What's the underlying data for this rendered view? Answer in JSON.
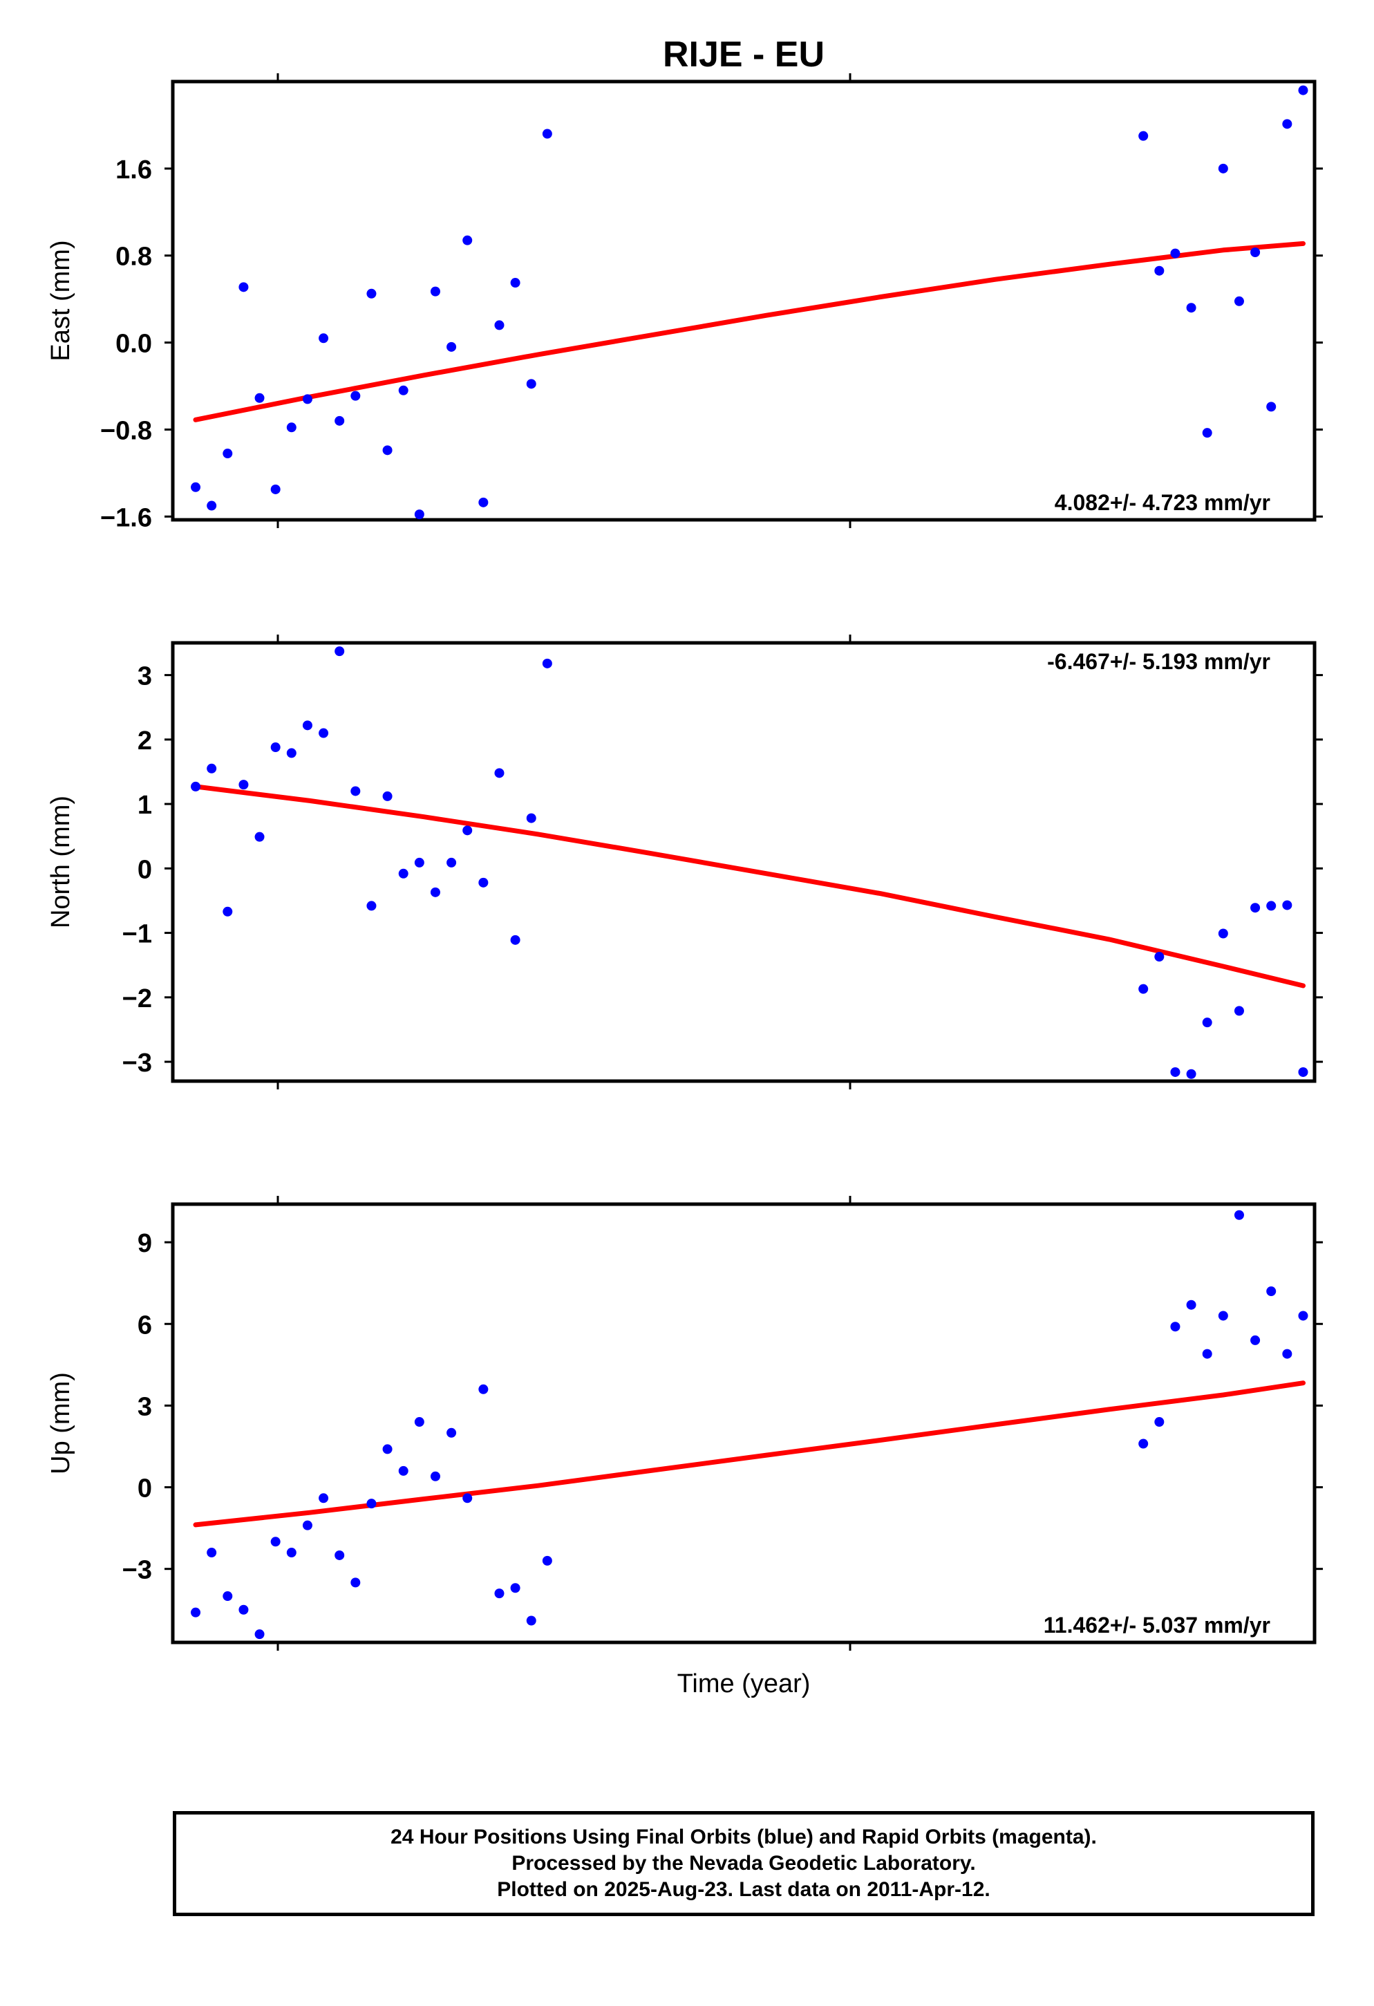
{
  "title": "RIJE - EU",
  "xlabel": "Time (year)",
  "colors": {
    "points": "#0000ff",
    "fit": "#ff0000",
    "axes": "#000000"
  },
  "footer": {
    "line1": "24 Hour Positions Using Final Orbits (blue) and Rapid Orbits (magenta).",
    "line2": "Processed by the Nevada Geodetic Laboratory.",
    "line3": "Plotted on 2025-Aug-23. Last data on 2011-Apr-12."
  },
  "chart_data": [
    {
      "type": "scatter",
      "ylabel": "East (mm)",
      "rate": "4.082+/- 4.723 mm/yr",
      "rate_position": "bottom-right",
      "ylim": [
        -1.63,
        2.4
      ],
      "xlim": [
        0,
        100
      ],
      "yticks": [
        -1.6,
        -0.8,
        0.0,
        0.8,
        1.6
      ],
      "ytick_labels": [
        "−1.6",
        "−0.8",
        "0.0",
        "0.8",
        "1.6"
      ],
      "x": [
        2.0,
        3.4,
        4.8,
        6.2,
        7.6,
        9.0,
        10.4,
        11.8,
        13.2,
        14.6,
        16.0,
        17.4,
        18.8,
        20.2,
        21.6,
        23.0,
        24.4,
        25.8,
        27.2,
        28.6,
        30.0,
        31.4,
        32.8,
        85.0,
        86.4,
        87.8,
        89.2,
        90.6,
        92.0,
        93.4,
        94.8,
        96.2,
        97.6,
        99.0
      ],
      "y": [
        -1.33,
        -1.5,
        -1.02,
        0.51,
        -0.51,
        -1.35,
        -0.78,
        -0.52,
        0.04,
        -0.72,
        -0.49,
        0.45,
        -0.99,
        -0.44,
        -1.58,
        0.47,
        -0.04,
        0.94,
        -1.47,
        0.16,
        0.55,
        -0.38,
        1.92,
        1.9,
        0.66,
        0.82,
        0.32,
        -0.83,
        1.6,
        0.38,
        0.83,
        -0.59,
        2.01,
        2.32
      ],
      "fit": {
        "x": [
          2,
          12,
          22,
          32,
          42,
          52,
          62,
          72,
          82,
          92,
          99
        ],
        "y": [
          -0.71,
          -0.5,
          -0.3,
          -0.11,
          0.07,
          0.25,
          0.42,
          0.58,
          0.72,
          0.85,
          0.91
        ]
      }
    },
    {
      "type": "scatter",
      "ylabel": "North (mm)",
      "rate": "-6.467+/- 5.193 mm/yr",
      "rate_position": "top-right",
      "ylim": [
        -3.3,
        3.5
      ],
      "xlim": [
        0,
        100
      ],
      "yticks": [
        -3,
        -2,
        -1,
        0,
        1,
        2,
        3
      ],
      "ytick_labels": [
        "−3",
        "−2",
        "−1",
        "0",
        "1",
        "2",
        "3"
      ],
      "x": [
        2.0,
        3.4,
        4.8,
        6.2,
        7.6,
        9.0,
        10.4,
        11.8,
        13.2,
        14.6,
        16.0,
        17.4,
        18.8,
        20.2,
        21.6,
        23.0,
        24.4,
        25.8,
        27.2,
        28.6,
        30.0,
        31.4,
        32.8,
        85.0,
        86.4,
        87.8,
        89.2,
        90.6,
        92.0,
        93.4,
        94.8,
        96.2,
        97.6,
        99.0
      ],
      "y": [
        1.27,
        1.55,
        -0.67,
        1.3,
        0.49,
        1.88,
        1.79,
        2.22,
        2.1,
        3.37,
        1.2,
        -0.58,
        1.12,
        -0.08,
        0.09,
        -0.37,
        0.09,
        0.59,
        -0.22,
        1.48,
        -1.11,
        0.78,
        3.18,
        -1.87,
        -1.37,
        -3.16,
        -3.19,
        -2.39,
        -1.01,
        -2.21,
        -0.61,
        -0.58,
        -0.57,
        -3.16
      ],
      "fit": {
        "x": [
          2,
          12,
          22,
          32,
          42,
          52,
          62,
          72,
          82,
          92,
          99
        ],
        "y": [
          1.27,
          1.05,
          0.8,
          0.53,
          0.23,
          -0.08,
          -0.39,
          -0.75,
          -1.1,
          -1.52,
          -1.82
        ]
      }
    },
    {
      "type": "scatter",
      "ylabel": "Up (mm)",
      "rate": "11.462+/- 5.037 mm/yr",
      "rate_position": "bottom-right",
      "ylim": [
        -5.7,
        10.4
      ],
      "xlim": [
        0,
        100
      ],
      "yticks": [
        -3,
        0,
        3,
        6,
        9
      ],
      "ytick_labels": [
        "−3",
        "0",
        "3",
        "6",
        "9"
      ],
      "x": [
        2.0,
        3.4,
        4.8,
        6.2,
        7.6,
        9.0,
        10.4,
        11.8,
        13.2,
        14.6,
        16.0,
        17.4,
        18.8,
        20.2,
        21.6,
        23.0,
        24.4,
        25.8,
        27.2,
        28.6,
        30.0,
        31.4,
        32.8,
        85.0,
        86.4,
        87.8,
        89.2,
        90.6,
        92.0,
        93.4,
        94.8,
        96.2,
        97.6,
        99.0
      ],
      "y": [
        -4.6,
        -2.4,
        -4.0,
        -4.5,
        -5.4,
        -2.0,
        -2.4,
        -1.4,
        -0.4,
        -2.5,
        -3.5,
        -0.6,
        1.4,
        0.6,
        2.4,
        0.4,
        2.0,
        -0.4,
        3.6,
        -3.9,
        -3.7,
        -4.9,
        -2.7,
        1.6,
        2.4,
        5.9,
        6.7,
        4.9,
        6.3,
        10.0,
        5.4,
        7.2,
        4.9,
        6.3
      ],
      "fit": {
        "x": [
          2,
          12,
          22,
          32,
          42,
          52,
          62,
          72,
          82,
          92,
          99
        ],
        "y": [
          -1.38,
          -0.93,
          -0.43,
          0.06,
          0.62,
          1.18,
          1.73,
          2.3,
          2.86,
          3.39,
          3.83
        ]
      }
    }
  ]
}
